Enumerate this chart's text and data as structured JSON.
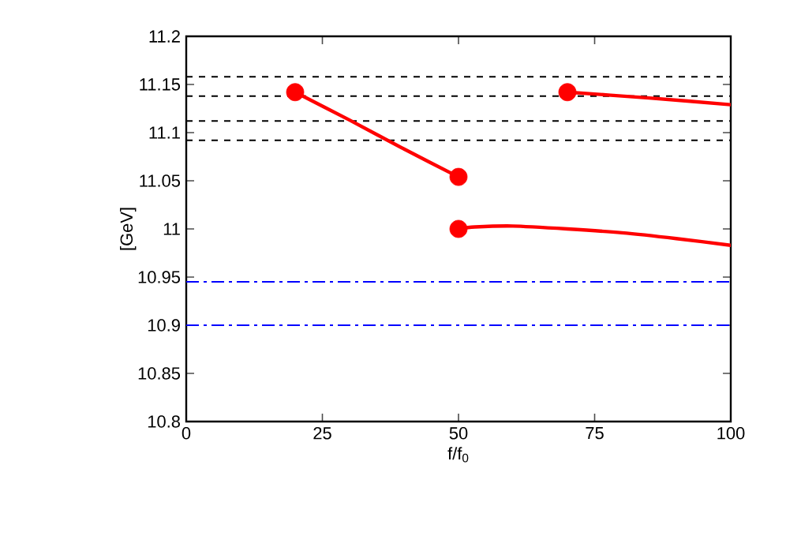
{
  "chart_data": {
    "type": "line",
    "xlabel": "f/f$_{0}$",
    "ylabel": "[GeV]",
    "xlim": [
      0,
      100
    ],
    "ylim": [
      10.8,
      11.2
    ],
    "xticks": [
      0,
      25,
      50,
      75,
      100
    ],
    "yticks": [
      10.8,
      10.85,
      10.9,
      10.95,
      11,
      11.05,
      11.1,
      11.15,
      11.2
    ],
    "series": [
      {
        "color": "#ff0000",
        "x": [
          20,
          30,
          40,
          50
        ],
        "values": [
          11.142,
          11.113,
          11.083,
          11.054
        ]
      },
      {
        "color": "#ff0000",
        "x": [
          50,
          53,
          60,
          70,
          80,
          90,
          100
        ],
        "values": [
          11.0,
          11.002,
          11.003,
          11.0,
          10.996,
          10.99,
          10.983
        ]
      },
      {
        "color": "#ff0000",
        "x": [
          70,
          85,
          100
        ],
        "values": [
          11.142,
          11.136,
          11.129
        ]
      },
      {
        "type": "scatter",
        "color": "#ff0000",
        "marker": "circle",
        "x": [
          20,
          50,
          50,
          70
        ],
        "values": [
          11.142,
          11.054,
          11.0,
          11.142
        ]
      }
    ],
    "ref_lines": [
      {
        "axis": "y",
        "value": 11.158,
        "color": "#000000",
        "line_style": "dashed"
      },
      {
        "axis": "y",
        "value": 11.138,
        "color": "#000000",
        "line_style": "dashed"
      },
      {
        "axis": "y",
        "value": 11.112,
        "color": "#000000",
        "line_style": "dashed"
      },
      {
        "axis": "y",
        "value": 11.092,
        "color": "#000000",
        "line_style": "dashed"
      },
      {
        "axis": "y",
        "value": 10.945,
        "color": "#0000ff",
        "line_style": "dashdot"
      },
      {
        "axis": "y",
        "value": 10.9,
        "color": "#0000ff",
        "line_style": "dashdot"
      }
    ]
  }
}
